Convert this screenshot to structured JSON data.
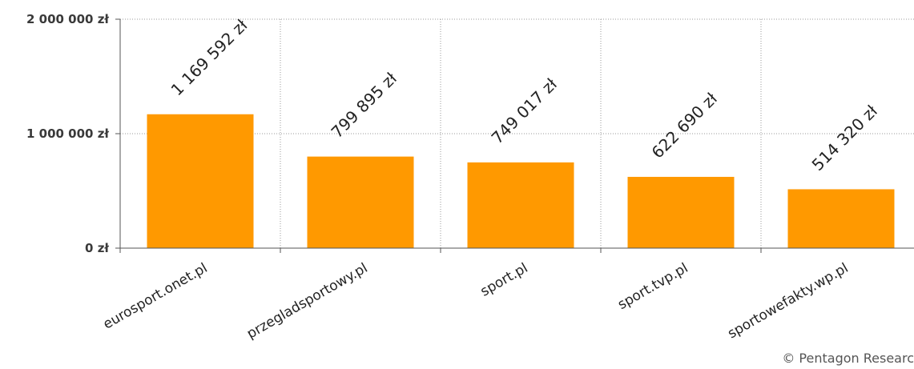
{
  "chart_data": {
    "type": "bar",
    "categories": [
      "eurosport.onet.pl",
      "przegladsportowy.pl",
      "sport.pl",
      "sport.tvp.pl",
      "sportowefakty.wp.pl"
    ],
    "values": [
      1169592,
      799895,
      749017,
      622690,
      514320
    ],
    "value_labels": [
      "1 169 592 zł",
      "799 895 zł",
      "749 017 zł",
      "622 690 zł",
      "514 320 zł"
    ],
    "ylim": [
      0,
      2000000
    ],
    "yticks": [
      0,
      1000000,
      2000000
    ],
    "ytick_labels": [
      "0 zł",
      "1 000 000 zł",
      "2 000 000 zł"
    ],
    "grid": true,
    "bar_color": "#ff9900",
    "title": "",
    "xlabel": "",
    "ylabel": ""
  },
  "credit": "© Pentagon Researc"
}
